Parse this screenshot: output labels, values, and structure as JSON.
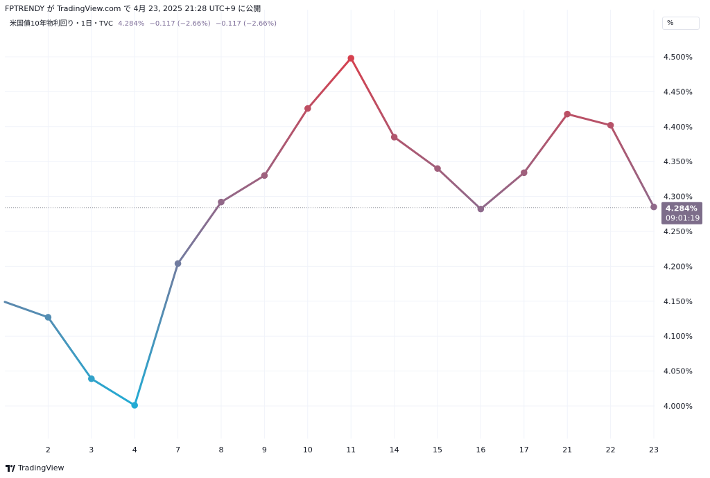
{
  "header": {
    "caption": "FPTRENDY が TradingView.com で 4月 23, 2025 21:28 UTC+9 に公開",
    "symbol": "米国債10年物利回り・1日・TVC",
    "last": "4.284%",
    "change1": "−0.117 (−2.66%)",
    "change2": "−0.117 (−2.66%)"
  },
  "unit_button": "%",
  "branding": "TradingView",
  "price_tag": {
    "value": "4.284%",
    "countdown": "09:01:19"
  },
  "colors": {
    "low": "#22abd4",
    "mid": "#8c6b8d",
    "high": "#d6404e",
    "tag_bg": "#7d6d8a",
    "grid": "#f0f3fa"
  },
  "chart_data": {
    "type": "line",
    "title": "米国債10年物利回り・1日・TVC",
    "x": [
      "1",
      "2",
      "3",
      "4",
      "7",
      "8",
      "9",
      "10",
      "11",
      "14",
      "15",
      "16",
      "17",
      "21",
      "22",
      "23"
    ],
    "x_tick_labels": [
      "2",
      "3",
      "4",
      "7",
      "8",
      "9",
      "10",
      "11",
      "14",
      "15",
      "16",
      "17",
      "21",
      "22",
      "23"
    ],
    "series": [
      {
        "values": [
          4.149,
          4.127,
          4.039,
          4.001,
          4.204,
          4.292,
          4.33,
          4.426,
          4.498,
          4.385,
          4.34,
          4.282,
          4.334,
          4.418,
          4.402,
          4.285
        ]
      }
    ],
    "ylim": [
      3.96,
      4.53
    ],
    "y_ticks": [
      "4.000%",
      "4.050%",
      "4.100%",
      "4.150%",
      "4.200%",
      "4.250%",
      "4.300%",
      "4.350%",
      "4.400%",
      "4.450%",
      "4.500%"
    ],
    "current_value": 4.284,
    "grid": true,
    "first_point_marker": false
  }
}
